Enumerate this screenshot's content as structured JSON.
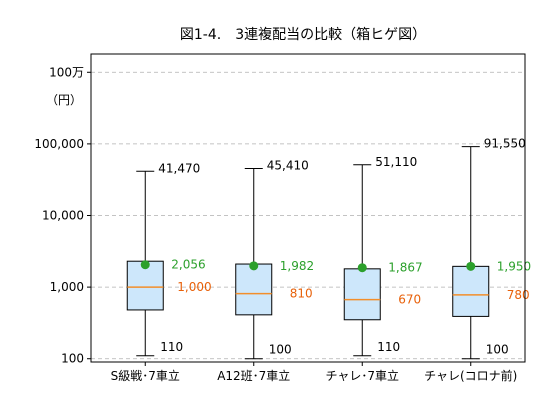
{
  "chart_data": {
    "type": "box",
    "title": "図1-4.　3連複配当の比較（箱ヒゲ図）",
    "y_unit_label": "（円）",
    "y_scale": "log",
    "ylim": [
      90,
      1800000
    ],
    "y_ticks": [
      {
        "value": 100,
        "label": "100"
      },
      {
        "value": 1000,
        "label": "1,000"
      },
      {
        "value": 10000,
        "label": "10,000"
      },
      {
        "value": 100000,
        "label": "100,000"
      },
      {
        "value": 1000000,
        "label": "100万"
      }
    ],
    "grid": true,
    "colors": {
      "box_fill": "#cde7fb",
      "box_stroke": "#000000",
      "median": "#f28e2b",
      "mean": "#2ca02c",
      "mean_label": "#2ca02c",
      "median_label": "#e8610a",
      "grid": "#b0b0b0"
    },
    "categories": [
      "S級戦･7車立",
      "A12班･7車立",
      "チャレ･7車立",
      "チャレ(コロナ前)"
    ],
    "boxes": [
      {
        "max": 41470,
        "q3": 2300,
        "median": 1000,
        "q1": 480,
        "min": 110,
        "mean": 2056,
        "max_label": "41,470",
        "mean_label": "2,056",
        "median_label": "1,000",
        "min_label": "110"
      },
      {
        "max": 45410,
        "q3": 2100,
        "median": 810,
        "q1": 410,
        "min": 100,
        "mean": 1982,
        "max_label": "45,410",
        "mean_label": "1,982",
        "median_label": "810",
        "min_label": "100"
      },
      {
        "max": 51110,
        "q3": 1800,
        "median": 670,
        "q1": 350,
        "min": 110,
        "mean": 1867,
        "max_label": "51,110",
        "mean_label": "1,867",
        "median_label": "670",
        "min_label": "110"
      },
      {
        "max": 91550,
        "q3": 1950,
        "median": 780,
        "q1": 390,
        "min": 100,
        "mean": 1950,
        "max_label": "91,550",
        "mean_label": "1,950",
        "median_label": "780",
        "min_label": "100"
      }
    ]
  }
}
